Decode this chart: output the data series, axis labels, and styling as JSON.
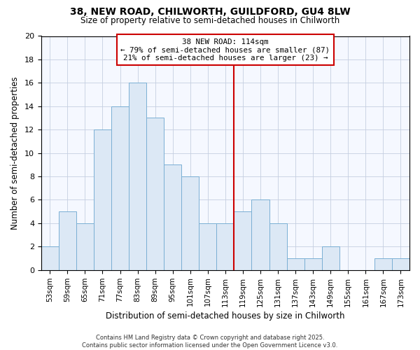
{
  "title1": "38, NEW ROAD, CHILWORTH, GUILDFORD, GU4 8LW",
  "title2": "Size of property relative to semi-detached houses in Chilworth",
  "xlabel": "Distribution of semi-detached houses by size in Chilworth",
  "ylabel": "Number of semi-detached properties",
  "bin_labels": [
    "53sqm",
    "59sqm",
    "65sqm",
    "71sqm",
    "77sqm",
    "83sqm",
    "89sqm",
    "95sqm",
    "101sqm",
    "107sqm",
    "113sqm",
    "119sqm",
    "125sqm",
    "131sqm",
    "137sqm",
    "143sqm",
    "149sqm",
    "155sqm",
    "161sqm",
    "167sqm",
    "173sqm"
  ],
  "values": [
    2,
    5,
    4,
    12,
    14,
    16,
    13,
    9,
    8,
    4,
    4,
    5,
    6,
    4,
    1,
    1,
    2,
    0,
    0,
    1,
    1
  ],
  "bar_color": "#dce8f5",
  "bar_edge_color": "#7aafd4",
  "marker_color": "#cc0000",
  "annotation_line1": "38 NEW ROAD: 114sqm",
  "annotation_line2": "← 79% of semi-detached houses are smaller (87)",
  "annotation_line3": "21% of semi-detached houses are larger (23) →",
  "annotation_box_color": "#ffffff",
  "annotation_box_edge": "#cc0000",
  "footer": "Contains HM Land Registry data © Crown copyright and database right 2025.\nContains public sector information licensed under the Open Government Licence v3.0.",
  "bg_color": "#eef2fb",
  "plot_bg": "#f5f8ff",
  "ylim": [
    0,
    20
  ],
  "yticks": [
    0,
    2,
    4,
    6,
    8,
    10,
    12,
    14,
    16,
    18,
    20
  ],
  "marker_bin_index": 10,
  "figsize": [
    6.0,
    5.0
  ],
  "dpi": 100
}
